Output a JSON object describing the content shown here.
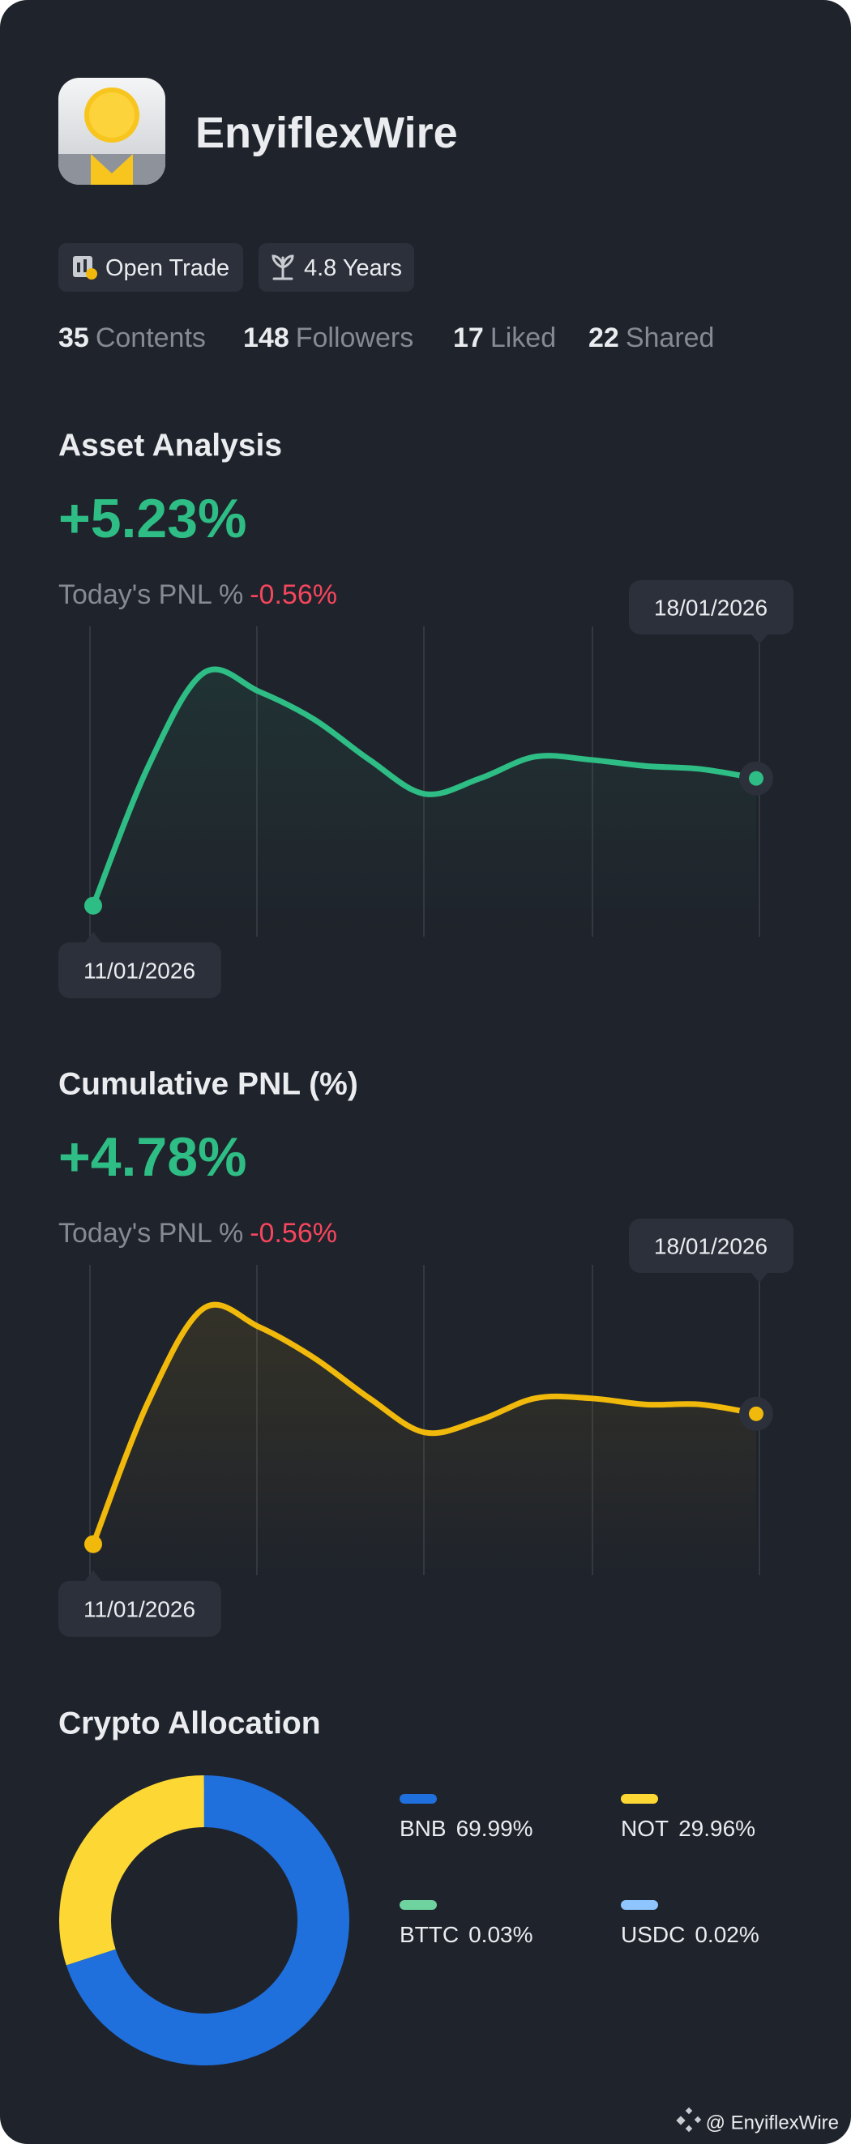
{
  "profile": {
    "name": "EnyiflexWire",
    "badges": [
      "Open Trade",
      "4.8 Years"
    ],
    "stats": [
      {
        "value": 35,
        "label": "Contents"
      },
      {
        "value": 148,
        "label": "Followers"
      },
      {
        "value": 17,
        "label": "Liked"
      },
      {
        "value": 22,
        "label": "Shared"
      }
    ]
  },
  "chart_data": [
    {
      "type": "line",
      "title": "Asset Analysis",
      "headline": "+5.23%",
      "subtitle": "Today's PNL %",
      "subtitle_value": "-0.56%",
      "start_label": "11/01/2026",
      "end_label": "18/01/2026",
      "color": "#2ebd85",
      "ylim": [
        0,
        100
      ],
      "values": [
        10,
        55,
        85,
        79,
        70,
        57,
        46,
        51,
        58,
        57,
        55,
        54,
        51
      ]
    },
    {
      "type": "line",
      "title": "Cumulative PNL (%)",
      "headline": "+4.78%",
      "subtitle": "Today's PNL %",
      "subtitle_value": "-0.56%",
      "start_label": "11/01/2026",
      "end_label": "18/01/2026",
      "color": "#f0b90b",
      "ylim": [
        0,
        100
      ],
      "values": [
        10,
        56,
        86,
        80,
        70,
        57,
        46,
        50,
        57,
        57,
        55,
        55,
        52
      ]
    },
    {
      "type": "donut",
      "title": "Crypto Allocation",
      "categories": [
        "BNB",
        "NOT",
        "BTTC",
        "USDC"
      ],
      "values": [
        69.99,
        29.96,
        0.03,
        0.02
      ],
      "value_labels": [
        "69.99%",
        "29.96%",
        "0.03%",
        "0.02%"
      ],
      "colors": [
        "#1f6fdc",
        "#fdd835",
        "#6fd3a0",
        "#8ec5ff"
      ]
    }
  ],
  "footer": "@ EnyiflexWire"
}
